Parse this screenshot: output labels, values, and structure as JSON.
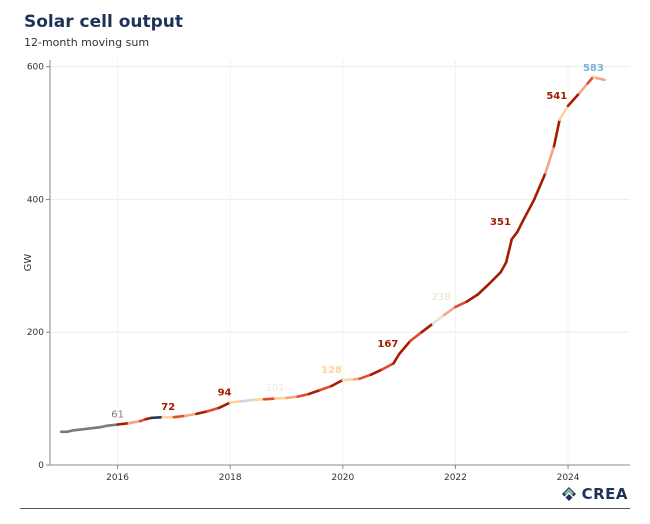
{
  "header": {
    "title": "Solar cell output",
    "subtitle": "12-month moving sum"
  },
  "brand": {
    "logo_text": "CREA"
  },
  "chart_data": {
    "type": "line",
    "title": "Solar cell output",
    "subtitle": "12-month moving sum",
    "xlabel": "",
    "ylabel": "GW",
    "xlim": [
      2014.8,
      2025.1
    ],
    "ylim": [
      0,
      610
    ],
    "x_ticks": [
      2016,
      2018,
      2020,
      2022,
      2024
    ],
    "y_ticks": [
      0,
      200,
      400,
      600
    ],
    "grid": true,
    "legend": "none",
    "series": [
      {
        "values": [
          [
            2015.0,
            50
          ],
          [
            2015.1,
            50
          ],
          [
            2015.2,
            52
          ],
          [
            2015.3,
            53
          ],
          [
            2015.4,
            54
          ],
          [
            2015.5,
            55
          ],
          [
            2015.6,
            56
          ],
          [
            2015.7,
            57
          ],
          [
            2015.8,
            59
          ],
          [
            2015.9,
            60
          ],
          [
            2016.0,
            61
          ],
          [
            2016.2,
            63
          ],
          [
            2016.4,
            66
          ],
          [
            2016.5,
            69
          ],
          [
            2016.6,
            71
          ],
          [
            2016.8,
            72
          ],
          [
            2017.0,
            72
          ],
          [
            2017.2,
            74
          ],
          [
            2017.4,
            77
          ],
          [
            2017.6,
            81
          ],
          [
            2017.8,
            86
          ],
          [
            2018.0,
            94
          ],
          [
            2018.2,
            96
          ],
          [
            2018.4,
            98
          ],
          [
            2018.6,
            99
          ],
          [
            2018.8,
            100
          ],
          [
            2019.0,
            101
          ],
          [
            2019.2,
            103
          ],
          [
            2019.4,
            107
          ],
          [
            2019.6,
            113
          ],
          [
            2019.8,
            119
          ],
          [
            2020.0,
            128
          ],
          [
            2020.2,
            129
          ],
          [
            2020.3,
            130
          ],
          [
            2020.5,
            136
          ],
          [
            2020.7,
            144
          ],
          [
            2020.9,
            153
          ],
          [
            2021.0,
            167
          ],
          [
            2021.2,
            187
          ],
          [
            2021.4,
            200
          ],
          [
            2021.6,
            213
          ],
          [
            2021.8,
            226
          ],
          [
            2022.0,
            238
          ],
          [
            2022.2,
            246
          ],
          [
            2022.4,
            257
          ],
          [
            2022.6,
            273
          ],
          [
            2022.8,
            290
          ],
          [
            2022.9,
            305
          ],
          [
            2023.0,
            340
          ],
          [
            2023.1,
            351
          ],
          [
            2023.2,
            368
          ],
          [
            2023.4,
            400
          ],
          [
            2023.6,
            440
          ],
          [
            2023.75,
            480
          ],
          [
            2023.85,
            520
          ],
          [
            2024.0,
            541
          ],
          [
            2024.2,
            560
          ],
          [
            2024.35,
            575
          ],
          [
            2024.45,
            585
          ],
          [
            2024.5,
            583
          ],
          [
            2024.65,
            580
          ]
        ],
        "segment_colors": [
          "#7a7a7a",
          "#7a7a7a",
          "#7a7a7a",
          "#7a7a7a",
          "#7a7a7a",
          "#7a7a7a",
          "#7a7a7a",
          "#7a7a7a",
          "#7a7a7a",
          "#7a7a7a",
          "#a61c00",
          "#f4a582",
          "#e34a33",
          "#a61c00",
          "#1f3359",
          "#fdd49e",
          "#e34a33",
          "#f4a582",
          "#a61c00",
          "#e34a33",
          "#a61c00",
          "#fdd49e",
          "#c6d9e8",
          "#fdd49e",
          "#e34a33",
          "#fdd49e",
          "#f4a582",
          "#e34a33",
          "#a61c00",
          "#e34a33",
          "#a61c00",
          "#fdd49e",
          "#f4a582",
          "#e34a33",
          "#a61c00",
          "#e34a33",
          "#a61c00",
          "#a61c00",
          "#e34a33",
          "#a61c00",
          "#e8e0d0",
          "#f4a582",
          "#e34a33",
          "#a61c00",
          "#a61c00",
          "#a61c00",
          "#a61c00",
          "#a61c00",
          "#a61c00",
          "#a61c00",
          "#a61c00",
          "#a61c00",
          "#f4a582",
          "#a61c00",
          "#fdd49e",
          "#a61c00",
          "#f4a582",
          "#e34a33",
          "#fdd49e",
          "#f4a582"
        ]
      }
    ],
    "annotations": [
      {
        "x": 2016.0,
        "y": 61,
        "text": "61",
        "color": "#7a7a7a",
        "bold": false
      },
      {
        "x": 2016.9,
        "y": 72,
        "text": "72",
        "color": "#a61c00",
        "bold": true
      },
      {
        "x": 2017.9,
        "y": 94,
        "text": "94",
        "color": "#a61c00",
        "bold": true
      },
      {
        "x": 2018.8,
        "y": 101,
        "text": "101",
        "color": "#eaeaea",
        "bold": false
      },
      {
        "x": 2019.8,
        "y": 128,
        "text": "128",
        "color": "#fdd49e",
        "bold": true
      },
      {
        "x": 2020.8,
        "y": 167,
        "text": "167",
        "color": "#a61c00",
        "bold": true
      },
      {
        "x": 2021.75,
        "y": 238,
        "text": "238",
        "color": "#e8e0d0",
        "bold": false
      },
      {
        "x": 2022.8,
        "y": 351,
        "text": "351",
        "color": "#a61c00",
        "bold": true
      },
      {
        "x": 2023.8,
        "y": 541,
        "text": "541",
        "color": "#a61c00",
        "bold": true
      },
      {
        "x": 2024.45,
        "y": 583,
        "text": "583",
        "color": "#7fb3d5",
        "bold": true
      }
    ]
  }
}
